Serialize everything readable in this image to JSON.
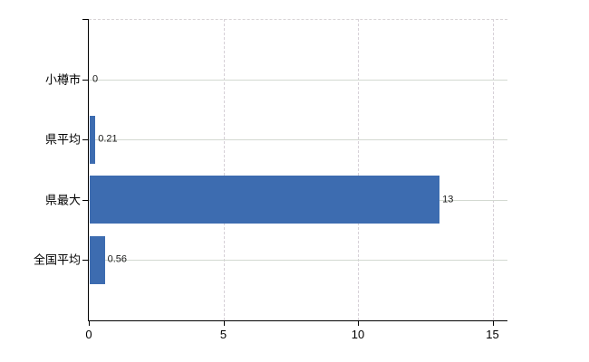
{
  "chart_data": {
    "type": "bar",
    "orientation": "horizontal",
    "title": "",
    "xlabel": "",
    "ylabel": "",
    "categories": [
      "小樽市",
      "県平均",
      "県最大",
      "全国平均"
    ],
    "values": [
      0,
      0.21,
      13,
      0.56
    ],
    "value_labels": [
      "0",
      "0.21",
      "13",
      "0.56"
    ],
    "x_ticks": [
      0,
      5,
      10,
      15
    ],
    "x_tick_labels": [
      "0",
      "5",
      "10",
      "15"
    ],
    "xlim": [
      0,
      15.5
    ],
    "grid": "horizontal solid, vertical dashed, dashed top border",
    "legend": "none",
    "colors": {
      "bar": "#3d6cb0",
      "axis": "#000000",
      "gridline_h": "#d3d9d1",
      "gridline_v": "#d6d0d7",
      "background": "#ffffff",
      "text": "#000000"
    }
  }
}
